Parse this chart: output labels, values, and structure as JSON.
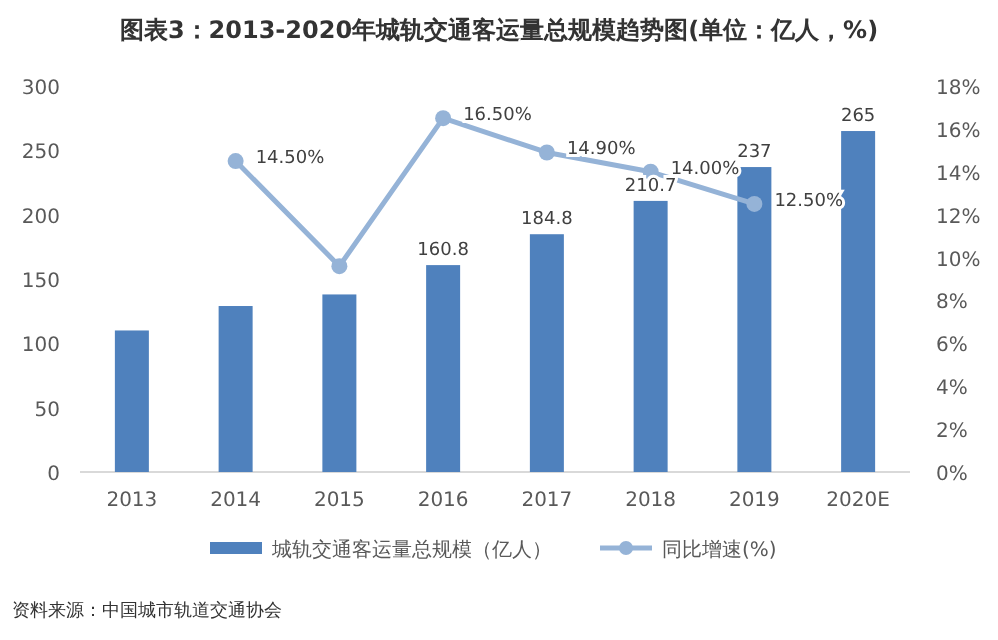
{
  "chart_data": {
    "type": "bar",
    "title": "图表3：2013-2020年城轨交通客运量总规模趋势图(单位：亿人，%)",
    "categories": [
      "2013",
      "2014",
      "2015",
      "2016",
      "2017",
      "2018",
      "2019",
      "2020E"
    ],
    "series": [
      {
        "name": "城轨交通客运量总规模（亿人）",
        "color": "#4f81bd",
        "values": [
          110,
          129,
          138,
          160.8,
          184.8,
          210.7,
          237,
          265
        ],
        "value_labels": [
          null,
          null,
          null,
          "160.8",
          "184.8",
          "210.7",
          "237",
          "265"
        ]
      },
      {
        "name": "同比增速(%)",
        "type": "line",
        "axis": "y2",
        "color": "#95b3d7",
        "marker": "circle",
        "values": [
          null,
          14.5,
          9.6,
          16.5,
          14.9,
          14.0,
          12.5,
          null
        ],
        "value_labels": [
          null,
          "14.50%",
          null,
          "16.50%",
          "14.90%",
          "14.00%",
          "12.50%",
          null
        ]
      }
    ],
    "ylim": [
      0,
      300
    ],
    "yticks": [
      0,
      50,
      100,
      150,
      200,
      250,
      300
    ],
    "y2lim": [
      0,
      18
    ],
    "y2ticks": [
      {
        "value": 0,
        "label": "0%"
      },
      {
        "value": 2,
        "label": "2%"
      },
      {
        "value": 4,
        "label": "4%"
      },
      {
        "value": 6,
        "label": "6%"
      },
      {
        "value": 8,
        "label": "8%"
      },
      {
        "value": 10,
        "label": "10%"
      },
      {
        "value": 12,
        "label": "12%"
      },
      {
        "value": 14,
        "label": "14%"
      },
      {
        "value": 16,
        "label": "16%"
      },
      {
        "value": 18,
        "label": "18%"
      }
    ],
    "legend": "bottom",
    "annotations": [
      "资料来源：中国城市轨道交通协会"
    ]
  }
}
